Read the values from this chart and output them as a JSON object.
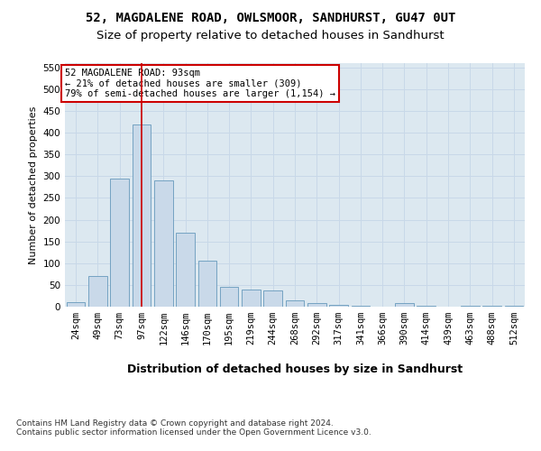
{
  "title1": "52, MAGDALENE ROAD, OWLSMOOR, SANDHURST, GU47 0UT",
  "title2": "Size of property relative to detached houses in Sandhurst",
  "xlabel": "Distribution of detached houses by size in Sandhurst",
  "ylabel": "Number of detached properties",
  "categories": [
    "24sqm",
    "49sqm",
    "73sqm",
    "97sqm",
    "122sqm",
    "146sqm",
    "170sqm",
    "195sqm",
    "219sqm",
    "244sqm",
    "268sqm",
    "292sqm",
    "317sqm",
    "341sqm",
    "366sqm",
    "390sqm",
    "414sqm",
    "439sqm",
    "463sqm",
    "488sqm",
    "512sqm"
  ],
  "bar_heights": [
    10,
    70,
    295,
    420,
    290,
    170,
    105,
    45,
    40,
    38,
    15,
    8,
    5,
    2,
    0,
    8,
    2,
    0,
    2,
    2,
    2
  ],
  "bar_color": "#c9d9e9",
  "bar_edge_color": "#6699bb",
  "vline_x": 3.0,
  "vline_color": "#cc0000",
  "annotation_text": "52 MAGDALENE ROAD: 93sqm\n← 21% of detached houses are smaller (309)\n79% of semi-detached houses are larger (1,154) →",
  "annotation_box_color": "#ffffff",
  "annotation_box_edge": "#cc0000",
  "ylim": [
    0,
    560
  ],
  "yticks": [
    0,
    50,
    100,
    150,
    200,
    250,
    300,
    350,
    400,
    450,
    500,
    550
  ],
  "grid_color": "#c8d8e8",
  "bg_color": "#dce8f0",
  "footer": "Contains HM Land Registry data © Crown copyright and database right 2024.\nContains public sector information licensed under the Open Government Licence v3.0.",
  "title1_fontsize": 10,
  "title2_fontsize": 9.5,
  "xlabel_fontsize": 9,
  "ylabel_fontsize": 8,
  "tick_fontsize": 7.5,
  "annotation_fontsize": 7.5,
  "footer_fontsize": 6.5
}
